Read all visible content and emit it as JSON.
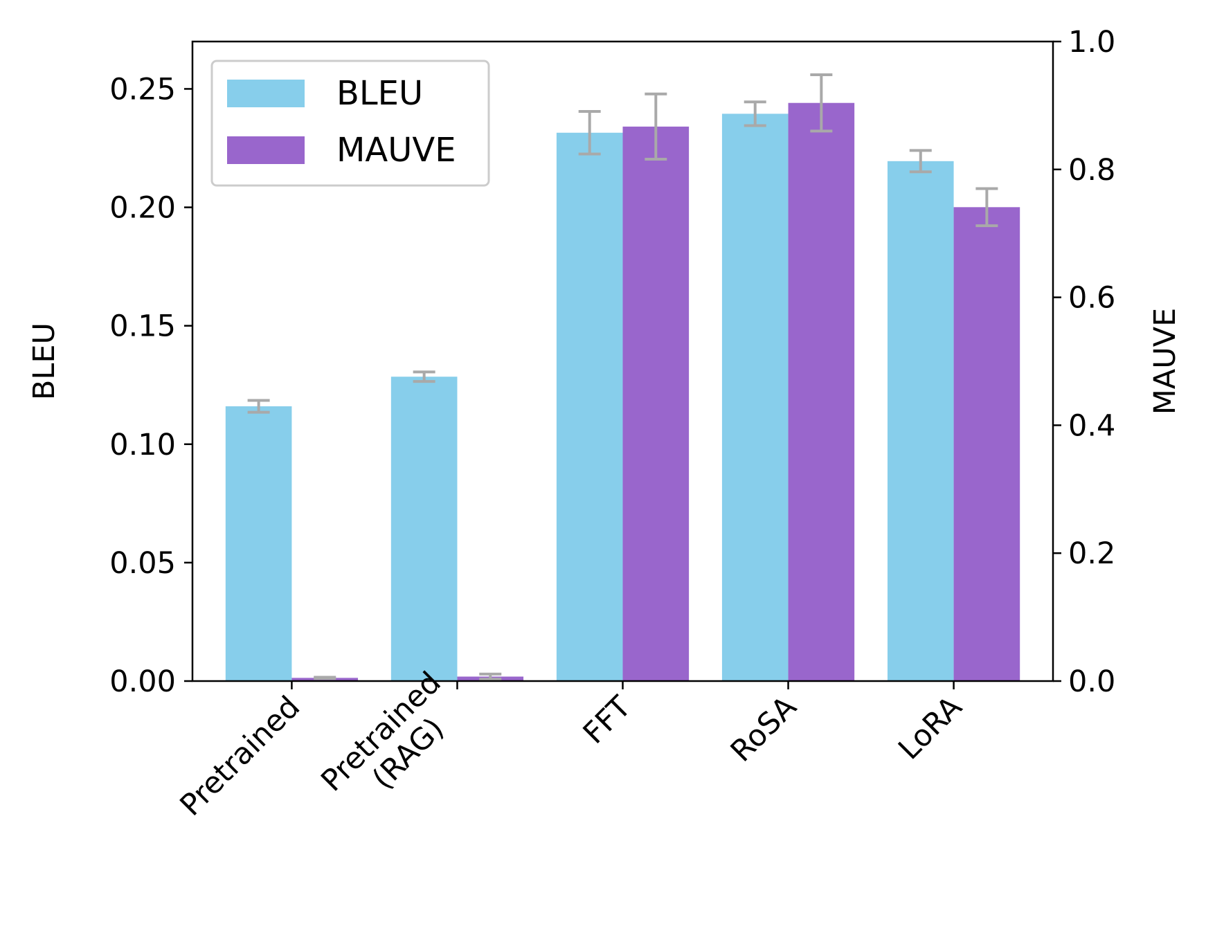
{
  "chart_data": {
    "type": "bar",
    "title": "",
    "categories": [
      "Pretrained",
      "Pretrained\n(RAG)",
      "FFT",
      "RoSA",
      "LoRA"
    ],
    "series": [
      {
        "name": "BLEU",
        "axis": "left",
        "color": "#87ceeb",
        "values": [
          0.116,
          0.1285,
          0.2315,
          0.2395,
          0.2195
        ],
        "errors": [
          0.0025,
          0.002,
          0.009,
          0.005,
          0.0045
        ]
      },
      {
        "name": "MAUVE",
        "axis": "right",
        "color": "#9966cc",
        "values": [
          0.005,
          0.007,
          0.867,
          0.904,
          0.741
        ],
        "errors": [
          0.001,
          0.004,
          0.051,
          0.044,
          0.029
        ]
      }
    ],
    "error_bar_color": "#a9a9a9",
    "left_axis": {
      "label": "BLEU",
      "ylim": [
        0,
        0.27
      ],
      "ticks": [
        0.0,
        0.05,
        0.1,
        0.15,
        0.2,
        0.25
      ],
      "tick_labels": [
        "0.00",
        "0.05",
        "0.10",
        "0.15",
        "0.20",
        "0.25"
      ]
    },
    "right_axis": {
      "label": "MAUVE",
      "ylim": [
        0,
        1.0
      ],
      "ticks": [
        0.0,
        0.2,
        0.4,
        0.6,
        0.8,
        1.0
      ],
      "tick_labels": [
        "0.0",
        "0.2",
        "0.4",
        "0.6",
        "0.8",
        "1.0"
      ]
    },
    "xlabel": "",
    "xtick_rotation": 45,
    "grid": false,
    "legend": {
      "placement": "top-left",
      "entries": [
        "BLEU",
        "MAUVE"
      ]
    }
  }
}
